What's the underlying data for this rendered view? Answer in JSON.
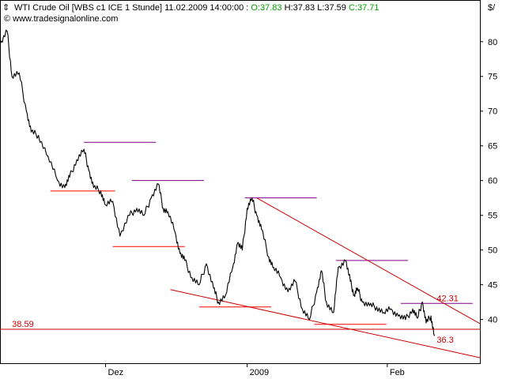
{
  "header": {
    "symbol": "WTI Crude Oil [WBS c1 ICE  1 Stunde] 11.02.2009 14:00:00 :",
    "open_label": "O:37.83",
    "high_label": "H:37.83",
    "low_label": "L:37.59",
    "close_label": "C:37.71",
    "copyright": "© www.tradesignalonline.com",
    "currency": "$/"
  },
  "colors": {
    "up": "#00a000",
    "price": "#000000",
    "resistance": "#800080",
    "support": "#ff0000",
    "trend": "#cc0000"
  },
  "chart_data": {
    "type": "line",
    "title": "WTI Crude Oil [WBS c1 ICE  1 Stunde]",
    "y_unit": "$/",
    "ylim": [
      33.7,
      86.0
    ],
    "y_ticks": [
      40,
      45,
      50,
      55,
      60,
      65,
      70,
      75,
      80
    ],
    "x_ticks": [
      "Dez",
      "2009",
      "Feb"
    ],
    "x_index_range": [
      0,
      100
    ],
    "x_tick_index": [
      22,
      51.5,
      80.7
    ],
    "series": [
      {
        "color": "#000000",
        "x": [
          0,
          1.5,
          2.5,
          4,
          5.5,
          6.5,
          8,
          10,
          12,
          13.5,
          14.5,
          16,
          17.5,
          18.5,
          19.5,
          21,
          22,
          23.5,
          25,
          27,
          28.5,
          30,
          31.5,
          33,
          34,
          35,
          36.5,
          37.5,
          38.5,
          40,
          41.5,
          43,
          44.5,
          45.5,
          47,
          48.5,
          49.5,
          50.5,
          51.5,
          52.5,
          53.5,
          54.5,
          56,
          57,
          58.5,
          60,
          61.5,
          63,
          64.5,
          66,
          67,
          68,
          69.5,
          70.5,
          72,
          73,
          73.8,
          74.5,
          75.5,
          77,
          78.5,
          80,
          81.5,
          83,
          84.5,
          86,
          87,
          88,
          88.8,
          89.8,
          90.5
        ],
        "y": [
          79.5,
          81.5,
          75,
          75.5,
          70,
          67,
          66.5,
          63.5,
          60,
          59,
          60.5,
          63,
          64.5,
          61.5,
          59,
          58.5,
          56.5,
          57,
          52,
          55,
          56,
          55,
          57.5,
          59.5,
          56,
          55.5,
          52.5,
          49.5,
          48.5,
          46,
          45,
          48,
          44.5,
          42.5,
          43.5,
          47.5,
          51,
          50,
          56,
          57.5,
          55,
          53,
          49,
          47.5,
          46,
          44,
          45.5,
          41.5,
          40,
          44,
          47,
          42.5,
          41,
          47.5,
          48.5,
          45.5,
          43.5,
          44.5,
          42.5,
          42,
          41.8,
          41,
          41.5,
          40.5,
          40,
          41.5,
          40.2,
          42.5,
          39.5,
          40.5,
          37.7
        ]
      }
    ],
    "levels": [
      {
        "kind": "resistance",
        "x0": 17.5,
        "x1": 32.5,
        "y": 65.5
      },
      {
        "kind": "resistance",
        "x0": 27.5,
        "x1": 42.5,
        "y": 60.0
      },
      {
        "kind": "resistance",
        "x0": 51.0,
        "x1": 66.0,
        "y": 57.5
      },
      {
        "kind": "resistance",
        "x0": 70.0,
        "x1": 85.0,
        "y": 48.5
      },
      {
        "kind": "resistance",
        "x0": 83.5,
        "x1": 98.5,
        "y": 42.31
      },
      {
        "kind": "support",
        "x0": 10.5,
        "x1": 24.0,
        "y": 58.5
      },
      {
        "kind": "support",
        "x0": 23.5,
        "x1": 38.5,
        "y": 50.5
      },
      {
        "kind": "support",
        "x0": 41.5,
        "x1": 56.5,
        "y": 41.8
      },
      {
        "kind": "support",
        "x0": 65.5,
        "x1": 80.5,
        "y": 39.3
      }
    ],
    "trendlines": [
      {
        "x0": 53.5,
        "y0": 57.5,
        "x1": 100,
        "y1": 39.4
      },
      {
        "x0": 35.5,
        "y0": 44.3,
        "x1": 100,
        "y1": 34.5
      },
      {
        "x0": 0,
        "y0": 38.59,
        "x1": 100,
        "y1": 38.59
      }
    ],
    "annotations": [
      {
        "text": "38.59",
        "x": 2.5,
        "y": 38.59
      },
      {
        "text": "42.31",
        "x": 91.0,
        "y": 42.31
      },
      {
        "text": "36.3",
        "x": 91.0,
        "y": 36.3
      }
    ]
  }
}
